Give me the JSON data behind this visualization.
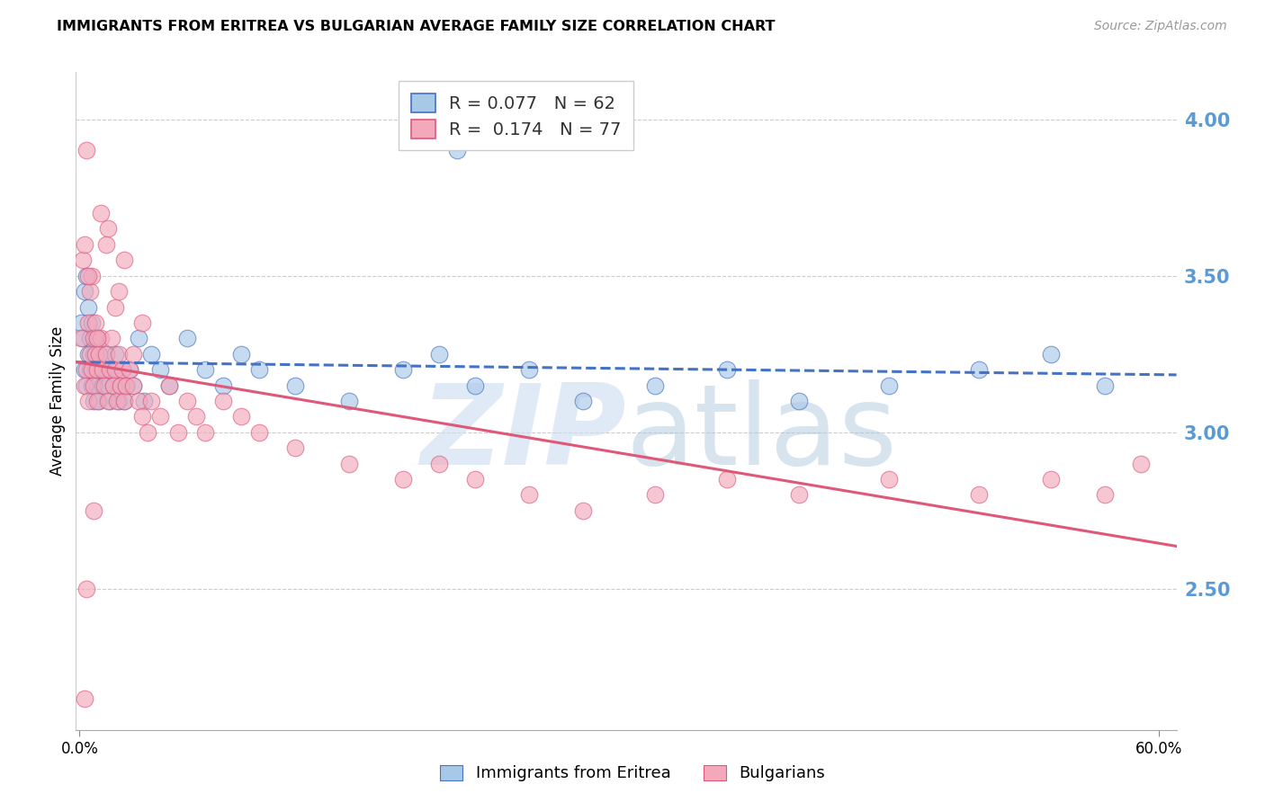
{
  "title": "IMMIGRANTS FROM ERITREA VS BULGARIAN AVERAGE FAMILY SIZE CORRELATION CHART",
  "source": "Source: ZipAtlas.com",
  "ylabel": "Average Family Size",
  "ytick_color": "#5b9bd5",
  "ymin": 2.05,
  "ymax": 4.15,
  "xmin": -0.002,
  "xmax": 0.61,
  "color_eritrea": "#a8c8e8",
  "color_bulgarian": "#f4a8bc",
  "line_color_eritrea": "#4472c4",
  "line_color_bulgarian": "#e05878",
  "marker_size": 180,
  "marker_alpha": 0.65,
  "marker_lw": 0.8,
  "trendline_eritrea_color": "#4472c4",
  "trendline_bulgarian_color": "#e05878",
  "trendline_lw": 2.2,
  "grid_color": "#cccccc",
  "grid_lw": 0.8,
  "spine_color": "#cccccc",
  "yticks": [
    2.5,
    3.0,
    3.5,
    4.0
  ],
  "legend1_label": "R = 0.077   N = 62",
  "legend2_label": "R =  0.174   N = 77",
  "legend1_R_color": "#4472c4",
  "legend1_N_color": "#e05878",
  "bottom_legend1": "Immigrants from Eritrea",
  "bottom_legend2": "Bulgarians",
  "watermark_zip_color": "#ccddf0",
  "watermark_atlas_color": "#b0c8dd",
  "eritrea_x": [
    0.001,
    0.002,
    0.003,
    0.003,
    0.004,
    0.004,
    0.005,
    0.005,
    0.006,
    0.006,
    0.007,
    0.007,
    0.008,
    0.008,
    0.009,
    0.009,
    0.01,
    0.01,
    0.011,
    0.011,
    0.012,
    0.013,
    0.014,
    0.015,
    0.016,
    0.017,
    0.018,
    0.019,
    0.02,
    0.021,
    0.022,
    0.023,
    0.024,
    0.025,
    0.026,
    0.028,
    0.03,
    0.033,
    0.036,
    0.04,
    0.045,
    0.05,
    0.06,
    0.07,
    0.08,
    0.09,
    0.1,
    0.12,
    0.15,
    0.18,
    0.2,
    0.22,
    0.25,
    0.28,
    0.32,
    0.36,
    0.4,
    0.45,
    0.5,
    0.54,
    0.57,
    0.21
  ],
  "eritrea_y": [
    3.35,
    3.3,
    3.45,
    3.2,
    3.5,
    3.15,
    3.25,
    3.4,
    3.3,
    3.2,
    3.35,
    3.15,
    3.25,
    3.1,
    3.3,
    3.2,
    3.15,
    3.3,
    3.25,
    3.1,
    3.2,
    3.15,
    3.25,
    3.2,
    3.15,
    3.1,
    3.2,
    3.15,
    3.25,
    3.2,
    3.1,
    3.15,
    3.2,
    3.1,
    3.15,
    3.2,
    3.15,
    3.3,
    3.1,
    3.25,
    3.2,
    3.15,
    3.3,
    3.2,
    3.15,
    3.25,
    3.2,
    3.15,
    3.1,
    3.2,
    3.25,
    3.15,
    3.2,
    3.1,
    3.15,
    3.2,
    3.1,
    3.15,
    3.2,
    3.25,
    3.15,
    3.9
  ],
  "bulgarian_x": [
    0.001,
    0.002,
    0.003,
    0.003,
    0.004,
    0.004,
    0.005,
    0.005,
    0.006,
    0.006,
    0.007,
    0.007,
    0.008,
    0.008,
    0.009,
    0.009,
    0.01,
    0.01,
    0.011,
    0.012,
    0.013,
    0.014,
    0.015,
    0.016,
    0.017,
    0.018,
    0.019,
    0.02,
    0.021,
    0.022,
    0.023,
    0.024,
    0.025,
    0.026,
    0.028,
    0.03,
    0.033,
    0.035,
    0.038,
    0.04,
    0.045,
    0.05,
    0.055,
    0.06,
    0.065,
    0.07,
    0.08,
    0.09,
    0.1,
    0.12,
    0.15,
    0.18,
    0.2,
    0.22,
    0.25,
    0.28,
    0.32,
    0.36,
    0.4,
    0.45,
    0.5,
    0.54,
    0.57,
    0.59,
    0.005,
    0.01,
    0.015,
    0.02,
    0.025,
    0.03,
    0.035,
    0.012,
    0.008,
    0.016,
    0.022,
    0.004,
    0.003
  ],
  "bulgarian_y": [
    3.3,
    3.55,
    3.6,
    3.15,
    3.9,
    3.2,
    3.35,
    3.1,
    3.45,
    3.25,
    3.5,
    3.2,
    3.3,
    3.15,
    3.25,
    3.35,
    3.2,
    3.1,
    3.25,
    3.3,
    3.2,
    3.15,
    3.25,
    3.1,
    3.2,
    3.3,
    3.15,
    3.2,
    3.1,
    3.25,
    3.15,
    3.2,
    3.1,
    3.15,
    3.2,
    3.15,
    3.1,
    3.05,
    3.0,
    3.1,
    3.05,
    3.15,
    3.0,
    3.1,
    3.05,
    3.0,
    3.1,
    3.05,
    3.0,
    2.95,
    2.9,
    2.85,
    2.9,
    2.85,
    2.8,
    2.75,
    2.8,
    2.85,
    2.8,
    2.85,
    2.8,
    2.85,
    2.8,
    2.9,
    3.5,
    3.3,
    3.6,
    3.4,
    3.55,
    3.25,
    3.35,
    3.7,
    2.75,
    3.65,
    3.45,
    2.5,
    2.15
  ]
}
